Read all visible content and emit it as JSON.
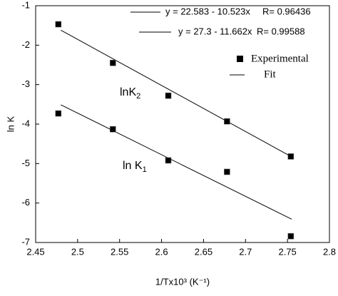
{
  "chart_data": {
    "type": "scatter",
    "xlabel": "1/Tx10³ (K⁻¹)",
    "ylabel": "ln K",
    "xlim": [
      2.45,
      2.8
    ],
    "xticks": [
      2.45,
      2.5,
      2.55,
      2.6,
      2.65,
      2.7,
      2.75,
      2.8
    ],
    "ylim": [
      -7,
      -1
    ],
    "yticks": [
      -7,
      -6,
      -5,
      -4,
      -3,
      -2,
      -1
    ],
    "color": "#000000",
    "series": [
      {
        "label": {
          "text": "lnK",
          "sub": "2"
        },
        "x": [
          2.477,
          2.542,
          2.608,
          2.678,
          2.754
        ],
        "values": [
          -1.47,
          -2.45,
          -3.28,
          -3.93,
          -4.82
        ]
      },
      {
        "label": {
          "text": "ln K",
          "sub": "1"
        },
        "x": [
          2.477,
          2.542,
          2.608,
          2.678,
          2.754
        ],
        "values": [
          -3.73,
          -4.13,
          -4.92,
          -5.21,
          -6.84
        ]
      }
    ],
    "fits": [
      {
        "equation": "y = 22.583 - 10.523x",
        "r": "R= 0.96436",
        "x": [
          2.48,
          2.755
        ],
        "values": [
          -3.51,
          -6.41
        ]
      },
      {
        "equation": "y = 27.3 - 11.662x",
        "r": "R= 0.99588",
        "x": [
          2.48,
          2.755
        ],
        "values": [
          -1.62,
          -4.83
        ]
      }
    ],
    "legend": [
      "Experimental",
      "Fit"
    ]
  }
}
